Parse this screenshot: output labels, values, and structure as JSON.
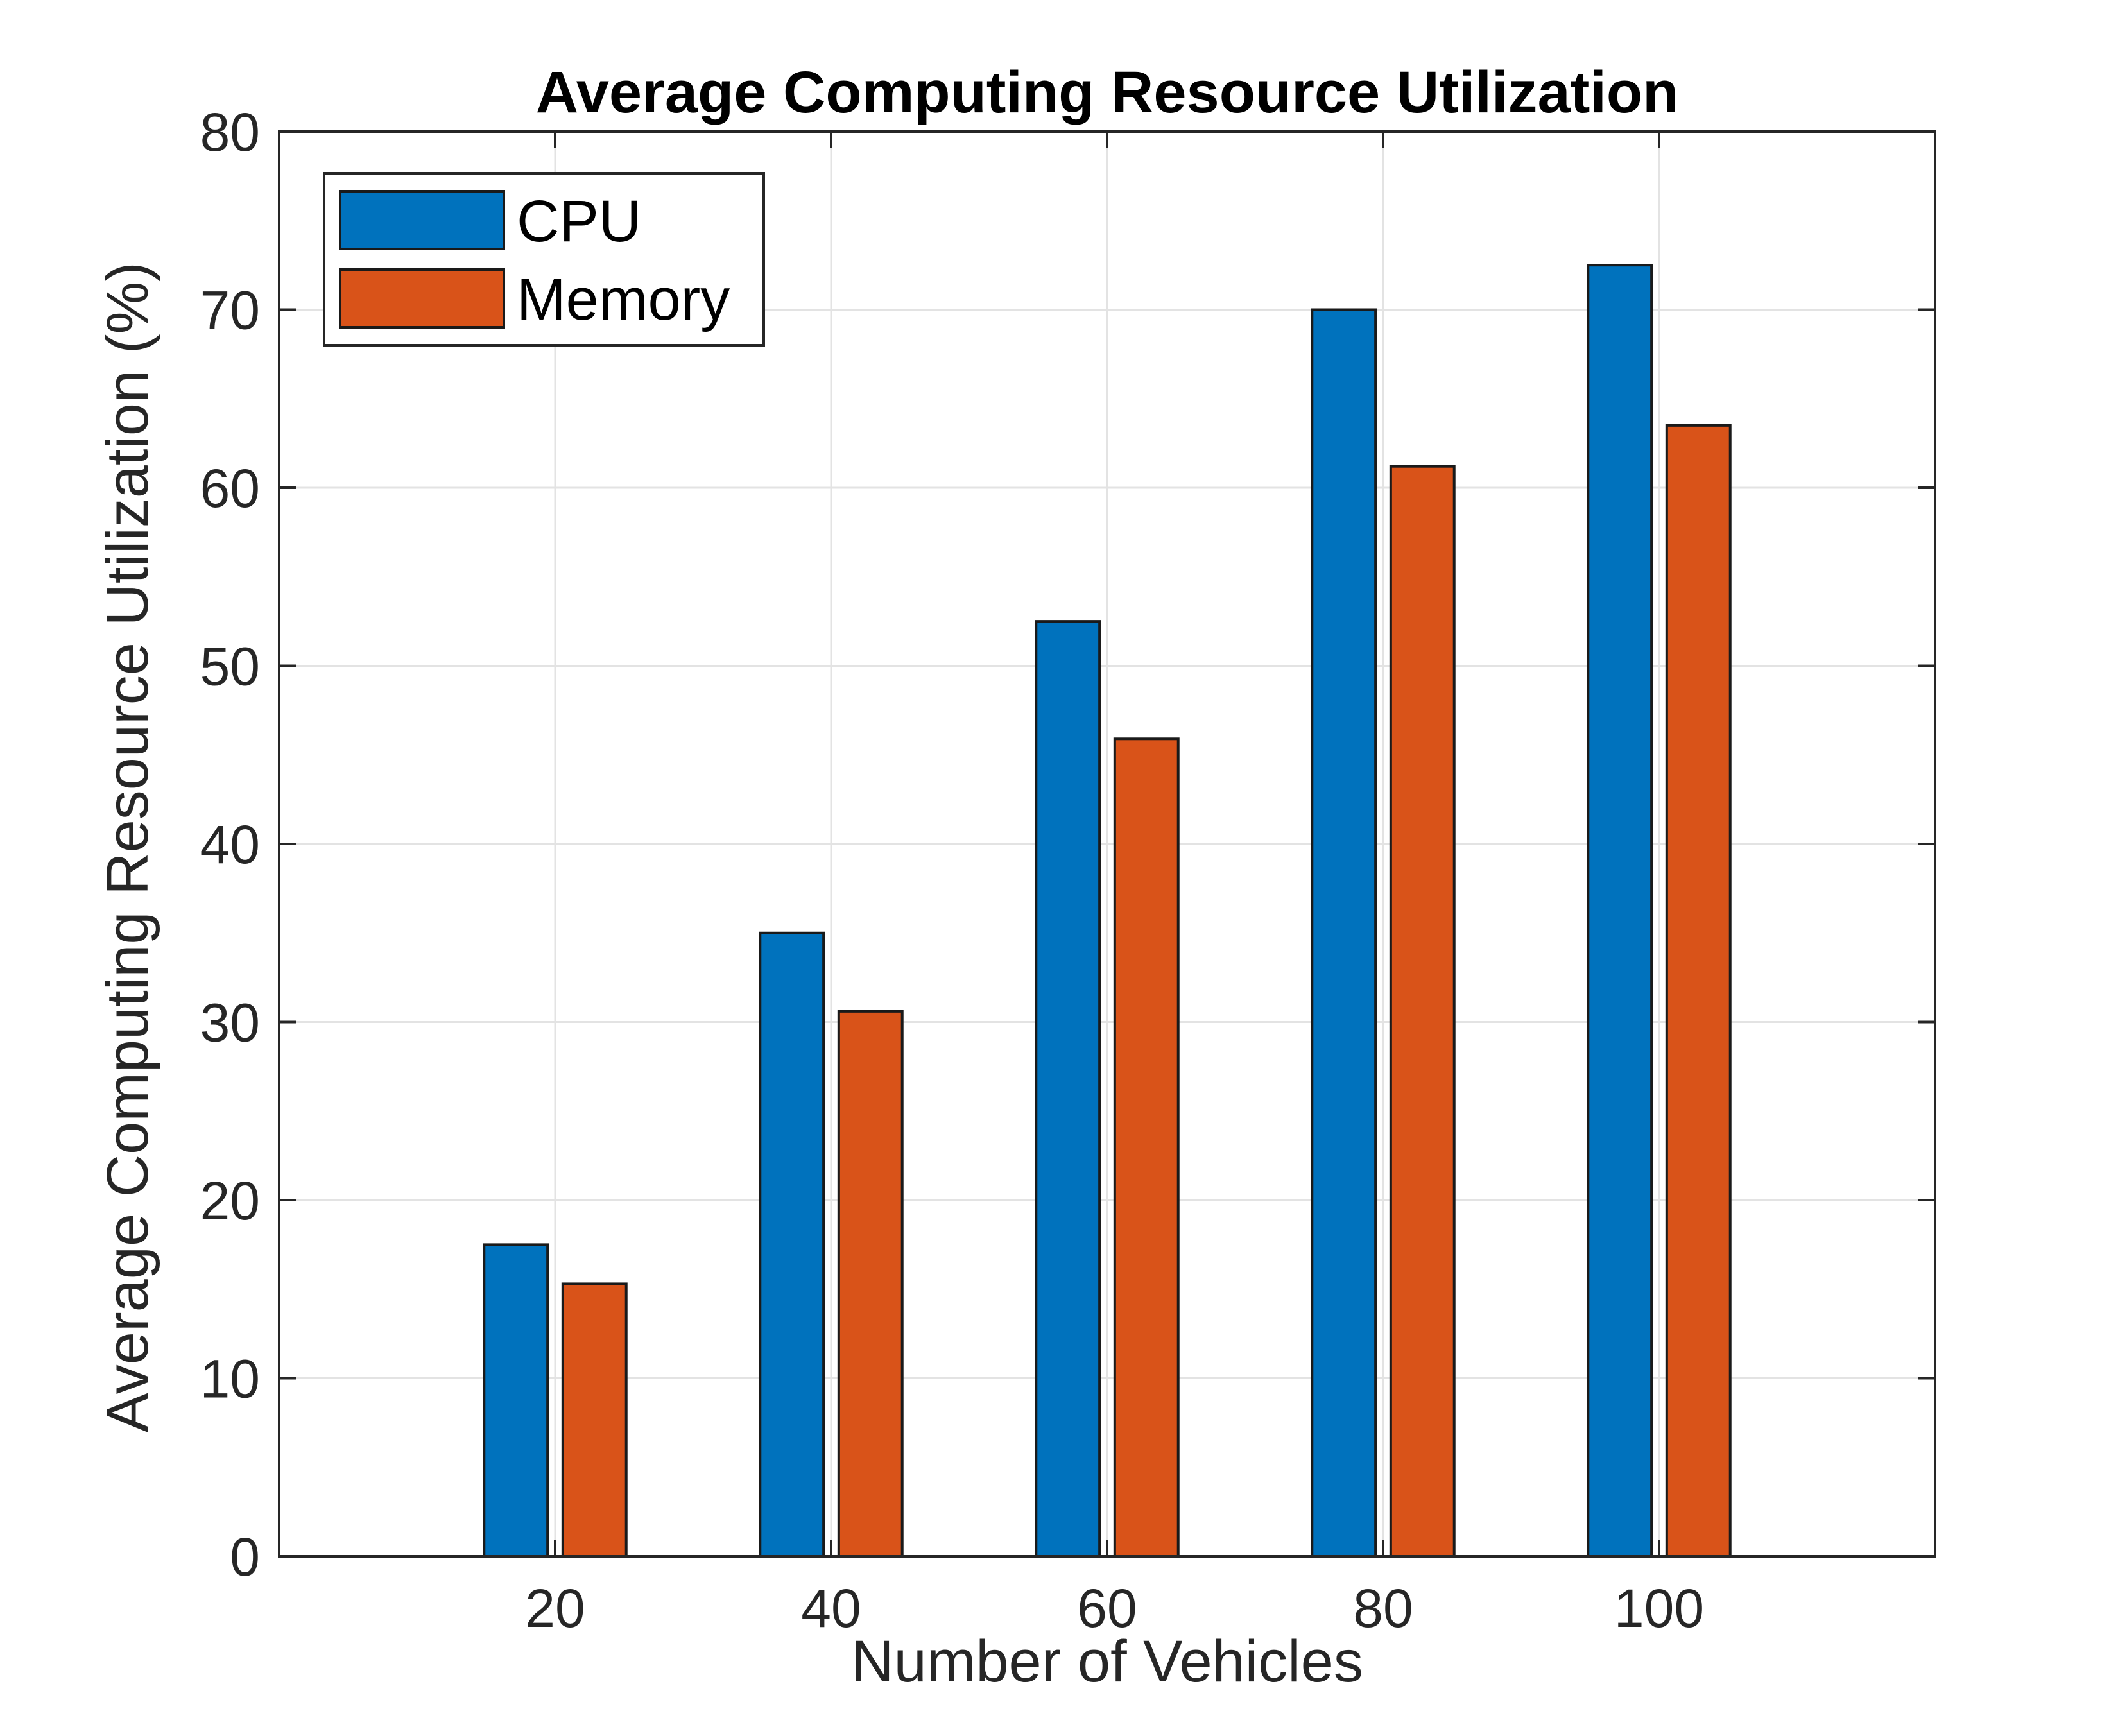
{
  "chart_data": {
    "type": "bar",
    "title": "Average Computing Resource Utilization",
    "xlabel": "Number of Vehicles",
    "ylabel": "Average Computing Resource Utilization (%)",
    "categories": [
      "20",
      "40",
      "60",
      "80",
      "100"
    ],
    "ylim": [
      0,
      80
    ],
    "yticks": [
      "0",
      "10",
      "20",
      "30",
      "40",
      "50",
      "60",
      "70",
      "80"
    ],
    "series": [
      {
        "name": "CPU",
        "color": "#0072BD",
        "values": [
          17.5,
          35.0,
          52.5,
          70.0,
          72.5
        ]
      },
      {
        "name": "Memory",
        "color": "#D95319",
        "values": [
          15.3,
          30.6,
          45.9,
          61.2,
          63.5
        ]
      }
    ],
    "grid": true,
    "legend_position": "top-left"
  }
}
